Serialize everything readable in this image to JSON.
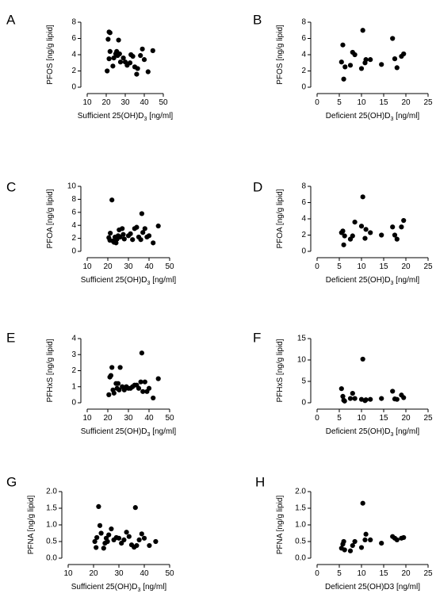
{
  "chart_data": [
    {
      "panel": "A",
      "type": "scatter",
      "ylabel": "PFOS [ng/g lipid]",
      "xlabel": {
        "main": "Sufficient 25(OH)D",
        "sub": "3",
        "tail": " [ng/ml]"
      },
      "xlim": [
        10,
        50
      ],
      "xticks": [
        10,
        20,
        30,
        40,
        50
      ],
      "ylim": [
        0,
        8
      ],
      "yticks": [
        0,
        2,
        4,
        6,
        8
      ],
      "points": [
        [
          20.5,
          2.0
        ],
        [
          21,
          5.9
        ],
        [
          21.5,
          6.8
        ],
        [
          22,
          6.7
        ],
        [
          21.5,
          3.5
        ],
        [
          22,
          4.4
        ],
        [
          23.5,
          2.6
        ],
        [
          24,
          3.6
        ],
        [
          25,
          4.1
        ],
        [
          25.5,
          4.4
        ],
        [
          26,
          3.9
        ],
        [
          26.5,
          5.8
        ],
        [
          27,
          4.1
        ],
        [
          27.5,
          3.1
        ],
        [
          29,
          3.6
        ],
        [
          30,
          3.1
        ],
        [
          31,
          2.7
        ],
        [
          32.5,
          3.0
        ],
        [
          33,
          4.0
        ],
        [
          34,
          3.8
        ],
        [
          35,
          2.5
        ],
        [
          36,
          1.6
        ],
        [
          36.5,
          2.3
        ],
        [
          38,
          3.9
        ],
        [
          39,
          4.7
        ],
        [
          40,
          3.4
        ],
        [
          42,
          1.9
        ],
        [
          44.5,
          4.5
        ]
      ]
    },
    {
      "panel": "B",
      "type": "scatter",
      "ylabel": "PFOS [ng/g lipid]",
      "xlabel": {
        "main": "Deficient 25(OH)D",
        "sub": "3",
        "tail": " [ng/ml]"
      },
      "xlim": [
        0,
        25
      ],
      "xticks": [
        0,
        5,
        10,
        15,
        20,
        25
      ],
      "ylim": [
        0,
        8
      ],
      "yticks": [
        0,
        2,
        4,
        6,
        8
      ],
      "points": [
        [
          5.5,
          3.1
        ],
        [
          5.8,
          5.2
        ],
        [
          6,
          1.0
        ],
        [
          6.3,
          2.5
        ],
        [
          7.5,
          2.7
        ],
        [
          8,
          4.3
        ],
        [
          8.5,
          4.0
        ],
        [
          10,
          2.3
        ],
        [
          10.3,
          7.0
        ],
        [
          10.8,
          3.0
        ],
        [
          11,
          3.4
        ],
        [
          12,
          3.4
        ],
        [
          14.5,
          2.8
        ],
        [
          17,
          6.0
        ],
        [
          17.5,
          3.5
        ],
        [
          18,
          2.4
        ],
        [
          19,
          3.8
        ],
        [
          19.5,
          4.1
        ]
      ]
    },
    {
      "panel": "C",
      "type": "scatter",
      "ylabel": "PFOA [ng/g lipid]",
      "xlabel": {
        "main": "Sufficient 25(OH)D",
        "sub": "3",
        "tail": " [ng/ml]"
      },
      "xlim": [
        10,
        50
      ],
      "xticks": [
        10,
        20,
        30,
        40,
        50
      ],
      "ylim": [
        0,
        10
      ],
      "yticks": [
        0,
        2,
        4,
        6,
        8,
        10
      ],
      "points": [
        [
          20.5,
          2.1
        ],
        [
          21,
          1.7
        ],
        [
          21.2,
          2.8
        ],
        [
          22,
          7.9
        ],
        [
          22.5,
          1.6
        ],
        [
          23,
          1.4
        ],
        [
          23.5,
          2.2
        ],
        [
          24,
          1.3
        ],
        [
          24.5,
          1.9
        ],
        [
          25,
          2.4
        ],
        [
          25.5,
          3.3
        ],
        [
          26,
          2.2
        ],
        [
          27,
          3.5
        ],
        [
          27.5,
          2.6
        ],
        [
          28,
          1.9
        ],
        [
          30,
          2.4
        ],
        [
          31,
          2.7
        ],
        [
          32,
          1.8
        ],
        [
          33,
          3.5
        ],
        [
          34,
          3.7
        ],
        [
          35,
          2.2
        ],
        [
          36,
          1.8
        ],
        [
          36.5,
          5.8
        ],
        [
          37,
          2.9
        ],
        [
          38,
          3.5
        ],
        [
          39,
          2.2
        ],
        [
          40,
          2.4
        ],
        [
          42,
          1.3
        ],
        [
          44.5,
          3.9
        ]
      ]
    },
    {
      "panel": "D",
      "type": "scatter",
      "ylabel": "PFOA [ng/g lipid]",
      "xlabel": {
        "main": "Deficient 25(OH)D",
        "sub": "3",
        "tail": " [ng/ml]"
      },
      "xlim": [
        0,
        25
      ],
      "xticks": [
        0,
        5,
        10,
        15,
        20,
        25
      ],
      "ylim": [
        0,
        8
      ],
      "yticks": [
        0,
        2,
        4,
        6,
        8
      ],
      "points": [
        [
          5.5,
          2.3
        ],
        [
          5.8,
          2.5
        ],
        [
          6,
          0.8
        ],
        [
          6.2,
          1.9
        ],
        [
          7.5,
          1.5
        ],
        [
          8,
          1.9
        ],
        [
          8.5,
          3.6
        ],
        [
          10,
          3.1
        ],
        [
          10.3,
          6.7
        ],
        [
          10.8,
          1.6
        ],
        [
          11,
          2.7
        ],
        [
          12,
          2.3
        ],
        [
          14.5,
          2.0
        ],
        [
          17,
          3.0
        ],
        [
          17.5,
          2.0
        ],
        [
          18,
          1.5
        ],
        [
          19,
          3.0
        ],
        [
          19.5,
          3.8
        ]
      ]
    },
    {
      "panel": "E",
      "type": "scatter",
      "ylabel": "PFHxS [ng/g lipid]",
      "xlabel": {
        "main": "Sufficient 25(OH)D",
        "sub": "3",
        "tail": " [ng/ml]"
      },
      "xlim": [
        10,
        50
      ],
      "xticks": [
        10,
        20,
        30,
        40,
        50
      ],
      "ylim": [
        0,
        4
      ],
      "yticks": [
        0,
        1,
        2,
        3,
        4
      ],
      "points": [
        [
          20.5,
          0.5
        ],
        [
          21,
          1.6
        ],
        [
          21.5,
          1.7
        ],
        [
          22,
          2.2
        ],
        [
          22.5,
          0.8
        ],
        [
          23,
          0.6
        ],
        [
          24,
          1.2
        ],
        [
          24.5,
          0.9
        ],
        [
          25,
          1.2
        ],
        [
          25.5,
          0.8
        ],
        [
          26,
          2.2
        ],
        [
          27,
          1.0
        ],
        [
          28,
          0.8
        ],
        [
          29,
          1.0
        ],
        [
          30,
          0.9
        ],
        [
          31,
          0.9
        ],
        [
          32,
          1.0
        ],
        [
          33,
          1.1
        ],
        [
          34,
          1.1
        ],
        [
          35,
          0.9
        ],
        [
          36,
          1.3
        ],
        [
          36.5,
          3.1
        ],
        [
          37,
          0.7
        ],
        [
          38,
          1.3
        ],
        [
          39,
          0.7
        ],
        [
          40,
          0.9
        ],
        [
          42,
          0.3
        ],
        [
          44.5,
          1.5
        ]
      ]
    },
    {
      "panel": "F",
      "type": "scatter",
      "ylabel": "PFHxS [ng/g lipid]",
      "xlabel": {
        "main": "Deficient 25(OH)D",
        "sub": "3",
        "tail": " [ng/ml]"
      },
      "xlim": [
        0,
        25
      ],
      "xticks": [
        0,
        5,
        10,
        15,
        20,
        25
      ],
      "ylim": [
        0,
        15
      ],
      "yticks": [
        0,
        5,
        10,
        15
      ],
      "points": [
        [
          5.5,
          3.3
        ],
        [
          5.8,
          1.5
        ],
        [
          6,
          0.6
        ],
        [
          6.2,
          0.4
        ],
        [
          7.5,
          1.0
        ],
        [
          8,
          2.2
        ],
        [
          8.5,
          1.0
        ],
        [
          10,
          0.8
        ],
        [
          10.3,
          10.2
        ],
        [
          10.8,
          0.5
        ],
        [
          11,
          0.7
        ],
        [
          12,
          0.8
        ],
        [
          14.5,
          1.0
        ],
        [
          17,
          2.7
        ],
        [
          17.5,
          0.9
        ],
        [
          18,
          0.8
        ],
        [
          19,
          1.8
        ],
        [
          19.5,
          1.2
        ]
      ]
    },
    {
      "panel": "G",
      "type": "scatter",
      "ylabel": "PFNA [ng/g lipid]",
      "xlabel": {
        "main": "Sufficient 25(OH)D",
        "sub": "3",
        "tail": " [ng/ml]"
      },
      "xlim": [
        10,
        50
      ],
      "xticks": [
        10,
        20,
        30,
        40,
        50
      ],
      "ylim": [
        0,
        2.0
      ],
      "yticks": [
        "0.0",
        "0.5",
        "1.0",
        "1.5",
        "2.0"
      ],
      "points": [
        [
          20.5,
          0.5
        ],
        [
          21,
          0.32
        ],
        [
          21.3,
          0.62
        ],
        [
          22,
          1.55
        ],
        [
          22.5,
          0.98
        ],
        [
          23,
          0.75
        ],
        [
          24,
          0.3
        ],
        [
          24.5,
          0.45
        ],
        [
          25,
          0.6
        ],
        [
          25.5,
          0.5
        ],
        [
          26,
          0.7
        ],
        [
          27,
          0.88
        ],
        [
          28,
          0.55
        ],
        [
          29,
          0.62
        ],
        [
          30,
          0.6
        ],
        [
          31,
          0.45
        ],
        [
          32,
          0.55
        ],
        [
          33,
          0.78
        ],
        [
          34,
          0.65
        ],
        [
          35,
          0.4
        ],
        [
          36,
          0.33
        ],
        [
          36.5,
          1.52
        ],
        [
          37,
          0.38
        ],
        [
          38,
          0.55
        ],
        [
          39,
          0.73
        ],
        [
          40,
          0.6
        ],
        [
          42,
          0.38
        ],
        [
          44.5,
          0.5
        ]
      ]
    },
    {
      "panel": "H",
      "type": "scatter",
      "ylabel": "PFNA [ng/g lipid]",
      "xlabel": {
        "main": "Deficient 25(OH)D3 [ng/ml]",
        "sub": "",
        "tail": ""
      },
      "xlim": [
        0,
        25
      ],
      "xticks": [
        0,
        5,
        10,
        15,
        20,
        25
      ],
      "ylim": [
        0,
        2.0
      ],
      "yticks": [
        "0.0",
        "0.5",
        "1.0",
        "1.5",
        "2.0"
      ],
      "points": [
        [
          5.5,
          0.3
        ],
        [
          5.8,
          0.42
        ],
        [
          6,
          0.5
        ],
        [
          6.2,
          0.25
        ],
        [
          7.5,
          0.22
        ],
        [
          8,
          0.38
        ],
        [
          8.5,
          0.5
        ],
        [
          10,
          0.32
        ],
        [
          10.3,
          1.65
        ],
        [
          10.8,
          0.55
        ],
        [
          11,
          0.72
        ],
        [
          12,
          0.55
        ],
        [
          14.5,
          0.45
        ],
        [
          17,
          0.65
        ],
        [
          17.5,
          0.6
        ],
        [
          18,
          0.55
        ],
        [
          19,
          0.6
        ],
        [
          19.5,
          0.62
        ]
      ]
    }
  ]
}
